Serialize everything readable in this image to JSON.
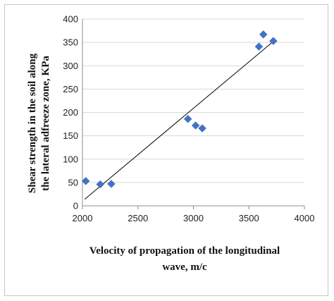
{
  "chart_data": {
    "type": "scatter",
    "xlabel_lines": [
      "Velocity of propagation of the longitudinal",
      "wave, m/c"
    ],
    "ylabel_lines": [
      "Shear strength in the soil along",
      "the lateral adfreeze zone, KPa"
    ],
    "xlim": [
      2000,
      4000
    ],
    "ylim": [
      0,
      400
    ],
    "xticks": [
      2000,
      2500,
      3000,
      3500,
      4000
    ],
    "yticks": [
      0,
      50,
      100,
      150,
      200,
      250,
      300,
      350,
      400
    ],
    "grid": "horizontal",
    "legend": "none",
    "marker": "diamond",
    "marker_color": "#4472C4",
    "trendline_color": "#000000",
    "series": [
      {
        "points": [
          {
            "x": 2030,
            "y": 53
          },
          {
            "x": 2160,
            "y": 46
          },
          {
            "x": 2260,
            "y": 47
          },
          {
            "x": 2950,
            "y": 186
          },
          {
            "x": 3020,
            "y": 172
          },
          {
            "x": 3080,
            "y": 166
          },
          {
            "x": 3590,
            "y": 341
          },
          {
            "x": 3630,
            "y": 367
          },
          {
            "x": 3720,
            "y": 353
          }
        ]
      }
    ],
    "trendline": {
      "x": [
        2020,
        3720
      ],
      "y": [
        14,
        352
      ]
    }
  }
}
